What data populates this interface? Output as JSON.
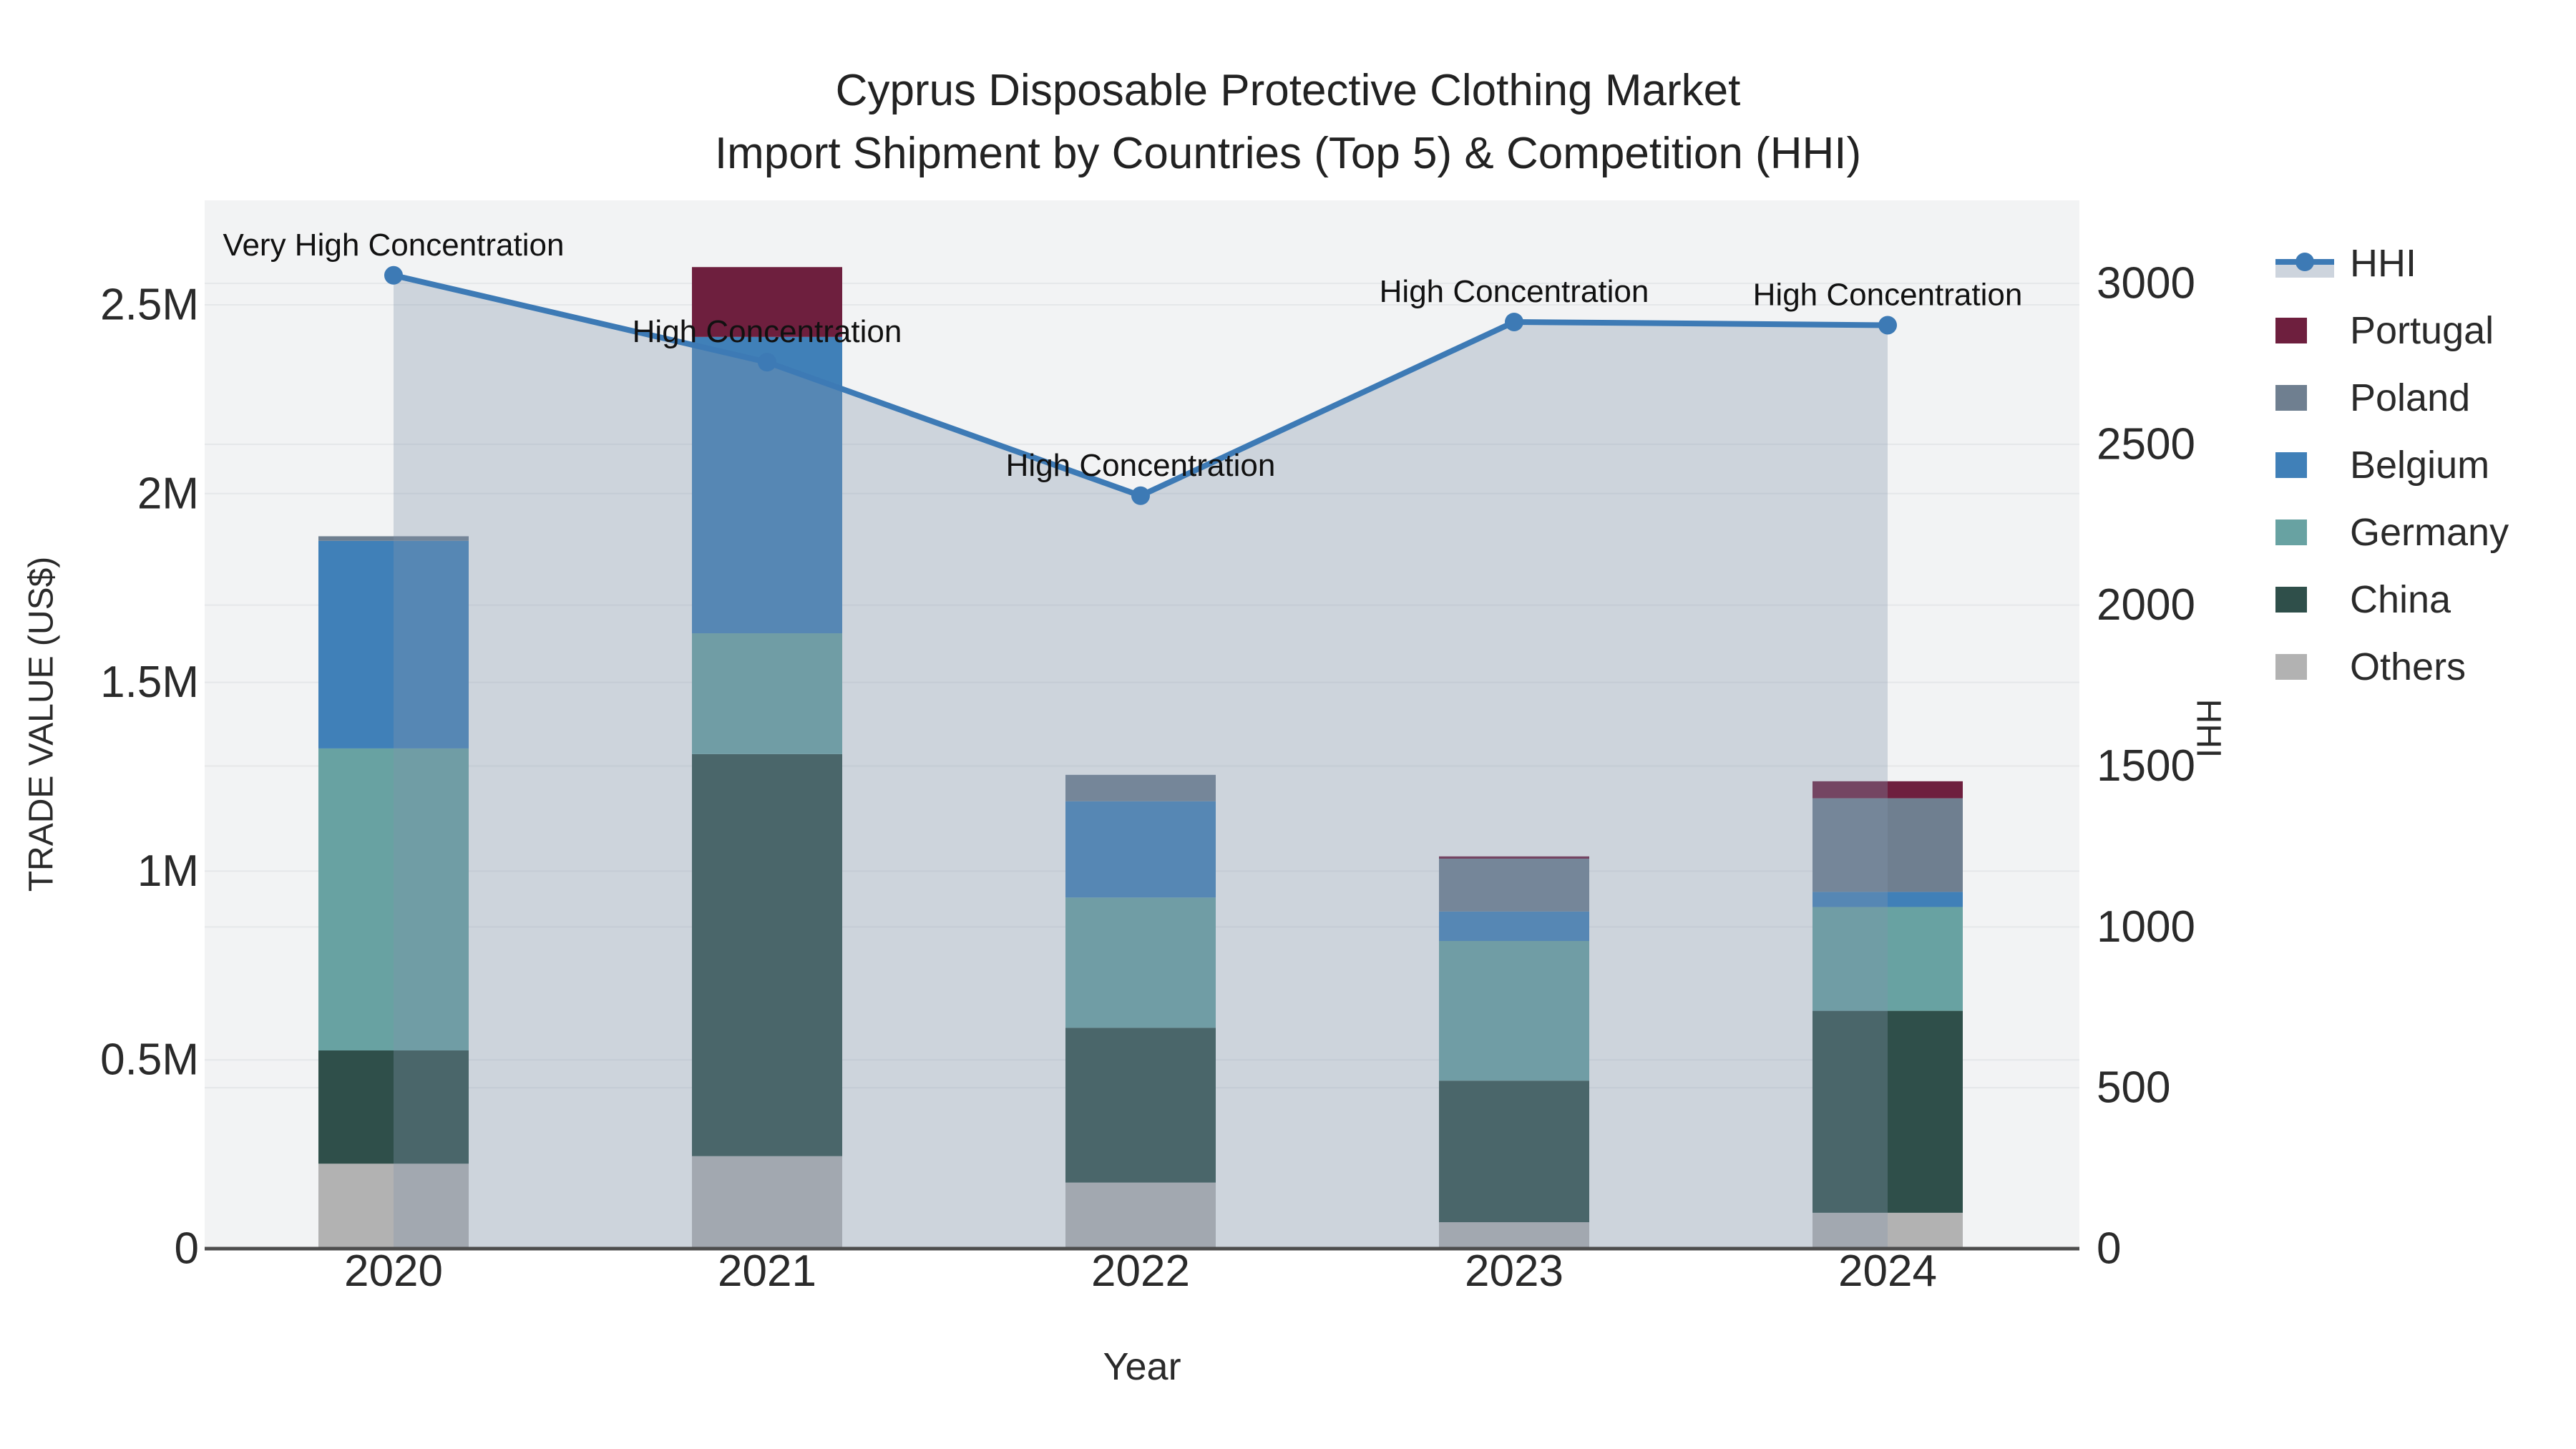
{
  "title": {
    "line1": "Cyprus Disposable Protective Clothing Market",
    "line2": "Import Shipment by Countries (Top 5) & Competition (HHI)"
  },
  "axes": {
    "x": {
      "title": "Year",
      "ticks": [
        "2020",
        "2021",
        "2022",
        "2023",
        "2024"
      ]
    },
    "y_left": {
      "title": "TRADE VALUE (US$)",
      "ticks": [
        {
          "label": "0",
          "value": 0
        },
        {
          "label": "0.5M",
          "value": 500000
        },
        {
          "label": "1M",
          "value": 1000000
        },
        {
          "label": "1.5M",
          "value": 1500000
        },
        {
          "label": "2M",
          "value": 2000000
        },
        {
          "label": "2.5M",
          "value": 2500000
        }
      ]
    },
    "y_right": {
      "title": "HHI",
      "ticks": [
        {
          "label": "0",
          "value": 0
        },
        {
          "label": "500",
          "value": 500
        },
        {
          "label": "1000",
          "value": 1000
        },
        {
          "label": "1500",
          "value": 1500
        },
        {
          "label": "2000",
          "value": 2000
        },
        {
          "label": "2500",
          "value": 2500
        },
        {
          "label": "3000",
          "value": 3000
        }
      ]
    }
  },
  "colors": {
    "background": "#ffffff",
    "plot_background": "#f2f3f4",
    "gridline": "#e5e7e9",
    "axis_line": "#4d4d4d",
    "text": "#2a2a2a",
    "hhi_line": "#3d7ab5",
    "hhi_fill": "rgba(131,148,174,0.33)",
    "hhi_legend_band": "#cdd4dd",
    "portugal": "#6e1f3e",
    "poland": "#6f7f90",
    "belgium": "#4080b8",
    "germany": "#68a2a2",
    "china": "#2f4f4a",
    "others": "#b2b2b2"
  },
  "legend": {
    "items": [
      {
        "id": "hhi",
        "label": "HHI",
        "type": "line"
      },
      {
        "id": "portugal",
        "label": "Portugal",
        "type": "swatch",
        "color": "#6e1f3e"
      },
      {
        "id": "poland",
        "label": "Poland",
        "type": "swatch",
        "color": "#6f7f90"
      },
      {
        "id": "belgium",
        "label": "Belgium",
        "type": "swatch",
        "color": "#4080b8"
      },
      {
        "id": "germany",
        "label": "Germany",
        "type": "swatch",
        "color": "#68a2a2"
      },
      {
        "id": "china",
        "label": "China",
        "type": "swatch",
        "color": "#2f4f4a"
      },
      {
        "id": "others",
        "label": "Others",
        "type": "swatch",
        "color": "#b2b2b2"
      }
    ]
  },
  "chart_data": {
    "type": "bar+line",
    "title": "Cyprus Disposable Protective Clothing Market — Import Shipment by Countries (Top 5) & Competition (HHI)",
    "xlabel": "Year",
    "ylabel_left": "TRADE VALUE (US$)",
    "ylabel_right": "HHI",
    "categories": [
      "2020",
      "2021",
      "2022",
      "2023",
      "2024"
    ],
    "stack_order_bottom_to_top": [
      "Others",
      "China",
      "Germany",
      "Belgium",
      "Poland",
      "Portugal"
    ],
    "bar_series": [
      {
        "name": "Others",
        "color": "#b2b2b2",
        "values": [
          225000,
          245000,
          175000,
          70000,
          95000
        ]
      },
      {
        "name": "China",
        "color": "#2f4f4a",
        "values": [
          300000,
          1065000,
          410000,
          375000,
          535000
        ]
      },
      {
        "name": "Germany",
        "color": "#68a2a2",
        "values": [
          800000,
          320000,
          345000,
          370000,
          275000
        ]
      },
      {
        "name": "Belgium",
        "color": "#4080b8",
        "values": [
          550000,
          785000,
          255000,
          78000,
          40000
        ]
      },
      {
        "name": "Poland",
        "color": "#6f7f90",
        "values": [
          12000,
          0,
          70000,
          140000,
          248000
        ]
      },
      {
        "name": "Portugal",
        "color": "#6e1f3e",
        "values": [
          0,
          185000,
          0,
          6000,
          45000
        ]
      }
    ],
    "bar_totals": [
      1887000,
      2600000,
      1255000,
      1039000,
      1238000
    ],
    "line_series": {
      "name": "HHI",
      "axis": "right",
      "color": "#3d7ab5",
      "fill": "rgba(131,148,174,0.33)",
      "markers": true,
      "values": [
        3025,
        2755,
        2340,
        2880,
        2870
      ]
    },
    "annotations": [
      {
        "category": "2020",
        "text": "Very High Concentration"
      },
      {
        "category": "2021",
        "text": "High Concentration"
      },
      {
        "category": "2022",
        "text": "High Concentration"
      },
      {
        "category": "2023",
        "text": "High Concentration"
      },
      {
        "category": "2024",
        "text": "High Concentration"
      }
    ],
    "ylim_left": [
      0,
      2500000
    ],
    "ylim_right": [
      0,
      3000
    ],
    "grid": true,
    "legend_position": "right"
  }
}
